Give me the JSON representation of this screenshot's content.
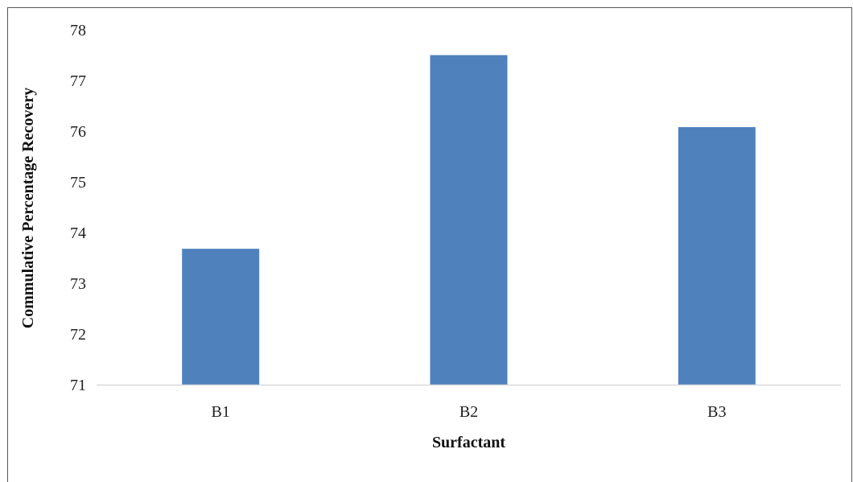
{
  "chart_data": {
    "type": "bar",
    "categories": [
      "B1",
      "B2",
      "B3"
    ],
    "values": [
      73.68,
      77.5,
      76.08
    ],
    "xlabel": "Surfactant",
    "ylabel": "Commulative Percentage Recovery",
    "ylim": [
      71,
      78
    ],
    "yticks": [
      71,
      72,
      73,
      74,
      75,
      76,
      77,
      78
    ],
    "grid": false,
    "legend": "none",
    "bar_color": "#4f81bd",
    "axis_color": "#d9d9d9"
  }
}
